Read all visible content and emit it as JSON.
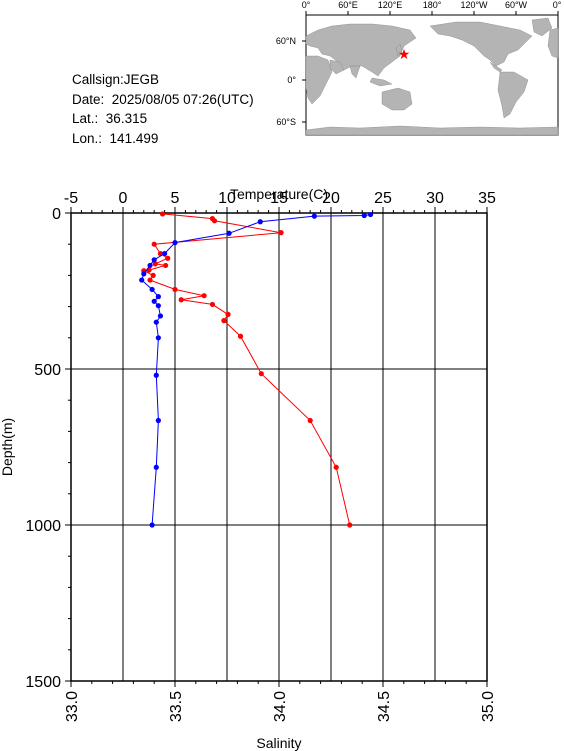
{
  "station": {
    "callsign_label": "Callsign:",
    "callsign": "JEGB",
    "date_label": "Date:",
    "date": "2025/08/05 07:26(UTC)",
    "lat_label": "Lat.:",
    "lat": "36.315",
    "lon_label": "Lon.:",
    "lon": "141.499"
  },
  "map": {
    "top_ticks": [
      "0°",
      "60°E",
      "120°E",
      "180°",
      "120°W",
      "60°W",
      "0°"
    ],
    "left_ticks": [
      "60°N",
      "0°",
      "60°S"
    ],
    "land_color": "#b4b4b4",
    "ocean_color": "#ffffff",
    "marker_color": "#ff0000"
  },
  "chart_data": {
    "type": "line",
    "xlabel_top": "Temperature(C)",
    "xlabel_bottom": "Salinity",
    "ylabel": "Depth(m)",
    "temperature_ticks": [
      "-5",
      "0",
      "5",
      "10",
      "15",
      "20",
      "25",
      "30",
      "35"
    ],
    "salinity_ticks": [
      "33.0",
      "33.5",
      "34.0",
      "34.5",
      "35.0"
    ],
    "depth_ticks": [
      "0",
      "500",
      "1000",
      "1500"
    ],
    "temperature_range": [
      -5,
      35
    ],
    "salinity_range": [
      33.0,
      35.0
    ],
    "depth_range": [
      0,
      1500
    ],
    "grid": true,
    "series": [
      {
        "quantity": "temperature",
        "color": "#ff0000",
        "points": [
          {
            "depth": 3,
            "value": 3.8
          },
          {
            "depth": 18,
            "value": 8.6
          },
          {
            "depth": 25,
            "value": 8.8
          },
          {
            "depth": 63,
            "value": 15.2
          },
          {
            "depth": 100,
            "value": 3.0
          },
          {
            "depth": 130,
            "value": 3.6
          },
          {
            "depth": 145,
            "value": 4.3
          },
          {
            "depth": 163,
            "value": 3.1
          },
          {
            "depth": 168,
            "value": 4.1
          },
          {
            "depth": 183,
            "value": 2.5
          },
          {
            "depth": 185,
            "value": 2.0
          },
          {
            "depth": 200,
            "value": 2.9
          },
          {
            "depth": 215,
            "value": 2.6
          },
          {
            "depth": 245,
            "value": 5.0
          },
          {
            "depth": 265,
            "value": 7.8
          },
          {
            "depth": 278,
            "value": 5.6
          },
          {
            "depth": 293,
            "value": 8.6
          },
          {
            "depth": 325,
            "value": 10.1
          },
          {
            "depth": 345,
            "value": 9.7
          },
          {
            "depth": 395,
            "value": 11.3
          },
          {
            "depth": 515,
            "value": 13.3
          },
          {
            "depth": 665,
            "value": 18.0
          },
          {
            "depth": 815,
            "value": 20.5
          },
          {
            "depth": 1000,
            "value": 21.8
          }
        ]
      },
      {
        "quantity": "salinity",
        "color": "#0000ff",
        "points": [
          {
            "depth": 5,
            "value": 34.44
          },
          {
            "depth": 8,
            "value": 34.41
          },
          {
            "depth": 10,
            "value": 34.17
          },
          {
            "depth": 28,
            "value": 33.91
          },
          {
            "depth": 65,
            "value": 33.76
          },
          {
            "depth": 95,
            "value": 33.5
          },
          {
            "depth": 130,
            "value": 33.45
          },
          {
            "depth": 150,
            "value": 33.4
          },
          {
            "depth": 168,
            "value": 33.38
          },
          {
            "depth": 195,
            "value": 33.35
          },
          {
            "depth": 215,
            "value": 33.34
          },
          {
            "depth": 245,
            "value": 33.39
          },
          {
            "depth": 268,
            "value": 33.42
          },
          {
            "depth": 283,
            "value": 33.4
          },
          {
            "depth": 297,
            "value": 33.42
          },
          {
            "depth": 330,
            "value": 33.43
          },
          {
            "depth": 350,
            "value": 33.41
          },
          {
            "depth": 400,
            "value": 33.42
          },
          {
            "depth": 520,
            "value": 33.41
          },
          {
            "depth": 665,
            "value": 33.42
          },
          {
            "depth": 815,
            "value": 33.41
          },
          {
            "depth": 1000,
            "value": 33.39
          }
        ]
      }
    ]
  }
}
